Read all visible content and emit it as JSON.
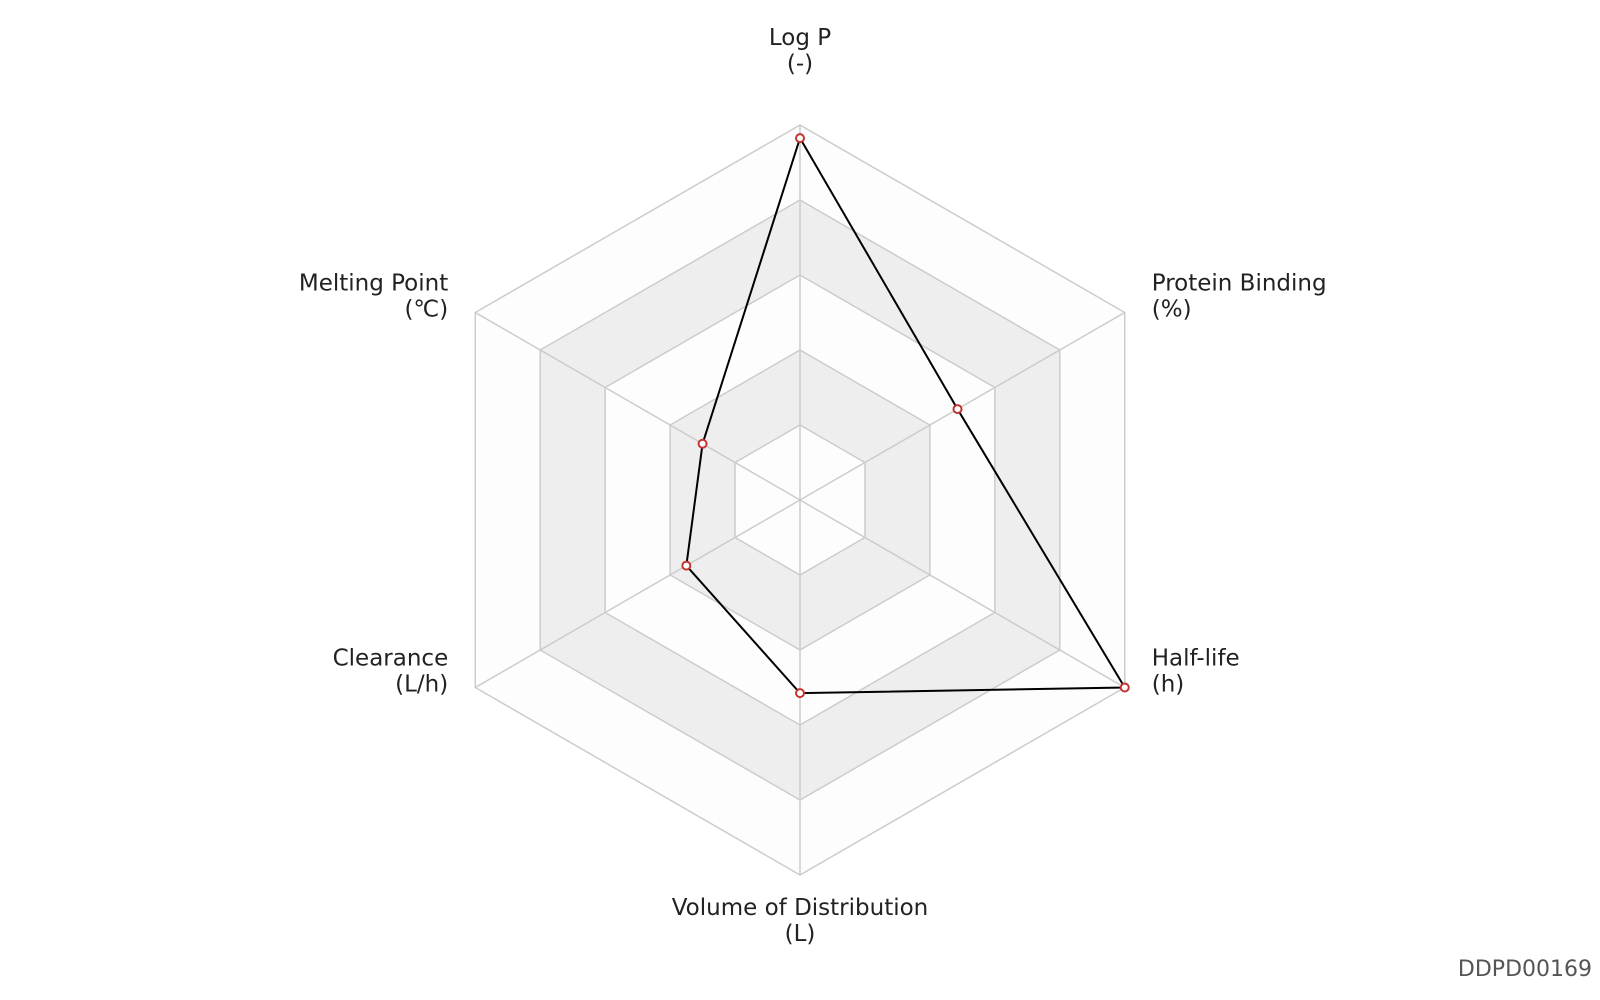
{
  "chart_data": {
    "type": "radar",
    "categories": [
      "Log P",
      "Protein Binding",
      "Half-life",
      "Volume of Distribution",
      "Clearance",
      "Melting Point"
    ],
    "units": [
      "(-)",
      "(%)",
      "(h)",
      "(L)",
      "(L/h)",
      "(℃)"
    ],
    "series": [
      {
        "color": "#000000",
        "point_color": "#c23531",
        "values": [
          0.965,
          0.485,
          1.0,
          0.515,
          0.35,
          0.3
        ]
      }
    ],
    "rlim": [
      0,
      1
    ],
    "rings": 5,
    "grid_color": "#cccccc",
    "band_colors": [
      "#fdfdfd",
      "#eeeeee"
    ],
    "watermark": "DDPD00169"
  }
}
